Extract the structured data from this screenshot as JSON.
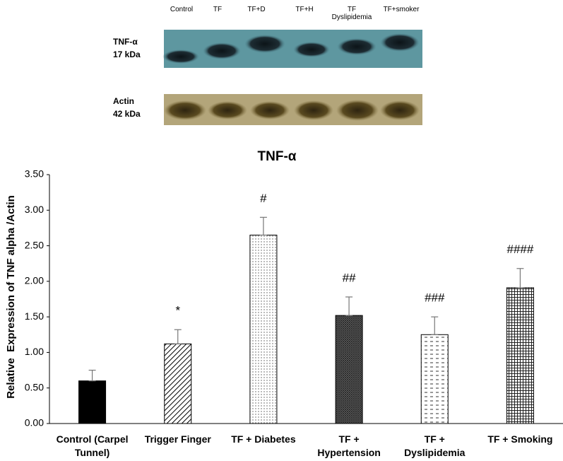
{
  "blot": {
    "lanes": [
      "Control",
      "TF",
      "TF+D",
      "TF+H",
      "TF Dyslipidemia",
      "TF+smoker"
    ],
    "rows": [
      {
        "protein": "TNF-α",
        "size": "17 kDa"
      },
      {
        "protein": "Actin",
        "size": "42 kDa"
      }
    ]
  },
  "chart_data": {
    "type": "bar",
    "title": "TNF-α",
    "y_label": "Relative  Expression of TNF alpha /Actin",
    "categories": [
      "Control (Carpel Tunnel)",
      "Trigger Finger",
      "TF + Diabetes",
      "TF + Hypertension",
      "TF + Dyslipidemia",
      "TF + Smoking"
    ],
    "values": [
      0.6,
      1.12,
      2.65,
      1.52,
      1.25,
      1.91
    ],
    "errors": [
      0.15,
      0.2,
      0.25,
      0.26,
      0.25,
      0.27
    ],
    "annotations": [
      null,
      "*",
      "#",
      "##",
      "###",
      "####"
    ],
    "patterns": [
      "solid",
      "diagonal",
      "dots",
      "crosshatch",
      "dashes",
      "grid"
    ],
    "color": "#000000",
    "ylim": [
      0,
      3.5
    ],
    "yticks": [
      {
        "value": 0,
        "label": "0.00"
      },
      {
        "value": 0.5,
        "label": "0.50"
      },
      {
        "value": 1,
        "label": "1.00"
      },
      {
        "value": 1.5,
        "label": "1.50"
      },
      {
        "value": 2,
        "label": "2.00"
      },
      {
        "value": 2.5,
        "label": "2.50"
      },
      {
        "value": 3,
        "label": "3.00"
      },
      {
        "value": 3.5,
        "label": "3.50"
      }
    ],
    "grid": false
  }
}
